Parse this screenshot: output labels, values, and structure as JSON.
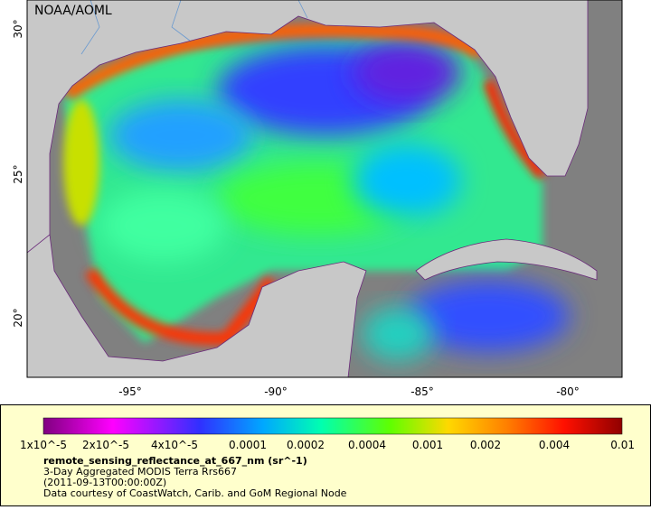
{
  "map": {
    "credit": "NOAA/AOML",
    "lat_labels": [
      "30°",
      "25°",
      "20°"
    ],
    "lon_labels": [
      "-95°",
      "-90°",
      "-85°",
      "-80°"
    ]
  },
  "legend": {
    "colorbar_labels": [
      "1x10^-5",
      "2x10^-5",
      "4x10^-5",
      "0.0001",
      "0.0002",
      "0.0004",
      "0.001",
      "0.002",
      "0.004",
      "0.01"
    ],
    "variable": "remote_sensing_reflectance_at_667_nm (sr^-1)",
    "dataset": "3-Day Aggregated MODIS Terra Rrs667",
    "time": "(2011-09-13T00:00:00Z)",
    "source": "Data courtesy of CoastWatch, Carib. and GoM Regional Node"
  }
}
